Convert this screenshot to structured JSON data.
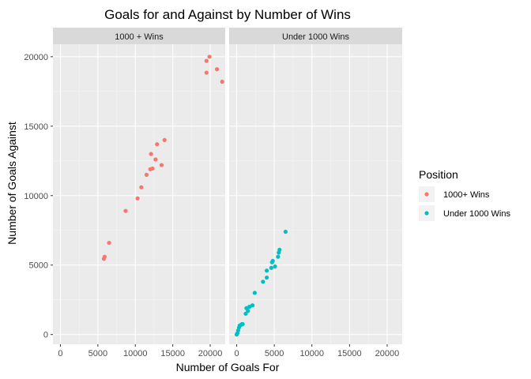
{
  "chart_data": {
    "type": "scatter",
    "title": "Goals for and Against by Number of Wins",
    "xlabel": "Number of Goals For",
    "ylabel": "Number of Goals Against",
    "xlim": [
      -1000,
      22000
    ],
    "ylim": [
      -700,
      20900
    ],
    "x_ticks": [
      0,
      5000,
      10000,
      15000,
      20000
    ],
    "x_tick_labels": [
      "0",
      "5000",
      "10000",
      "15000",
      "20000"
    ],
    "y_ticks": [
      0,
      5000,
      10000,
      15000,
      20000
    ],
    "y_tick_labels": [
      "0",
      "5000",
      "10000",
      "15000",
      "20000"
    ],
    "grid": true,
    "legend": {
      "title": "Position",
      "placement": "right",
      "entries": [
        {
          "label": "1000+ Wins",
          "color": "#F8766D"
        },
        {
          "label": "Under 1000 Wins",
          "color": "#00BFC4"
        }
      ]
    },
    "facets": [
      {
        "label": "1000 + Wins",
        "color": "#F8766D",
        "points": [
          [
            5800,
            5450
          ],
          [
            5900,
            5600
          ],
          [
            6500,
            6600
          ],
          [
            8700,
            8900
          ],
          [
            10300,
            9800
          ],
          [
            10800,
            10600
          ],
          [
            11500,
            11500
          ],
          [
            12000,
            11900
          ],
          [
            12300,
            11950
          ],
          [
            12100,
            13000
          ],
          [
            12700,
            12600
          ],
          [
            12900,
            13700
          ],
          [
            13500,
            12200
          ],
          [
            13900,
            14000
          ],
          [
            19500,
            18850
          ],
          [
            19500,
            19700
          ],
          [
            19900,
            20000
          ],
          [
            20900,
            19100
          ],
          [
            21600,
            18200
          ]
        ]
      },
      {
        "label": "Under 1000 Wins",
        "color": "#00BFC4",
        "points": [
          [
            0,
            0
          ],
          [
            100,
            100
          ],
          [
            200,
            300
          ],
          [
            300,
            500
          ],
          [
            400,
            650
          ],
          [
            600,
            700
          ],
          [
            700,
            750
          ],
          [
            800,
            750
          ],
          [
            1200,
            1500
          ],
          [
            1300,
            1900
          ],
          [
            1500,
            1700
          ],
          [
            1700,
            2000
          ],
          [
            2100,
            2100
          ],
          [
            2400,
            3000
          ],
          [
            3500,
            3800
          ],
          [
            4000,
            4100
          ],
          [
            4000,
            4600
          ],
          [
            4600,
            4800
          ],
          [
            4700,
            5200
          ],
          [
            4800,
            5300
          ],
          [
            5100,
            4900
          ],
          [
            5500,
            5600
          ],
          [
            5600,
            5900
          ],
          [
            5700,
            6100
          ],
          [
            6500,
            7400
          ]
        ]
      }
    ]
  }
}
